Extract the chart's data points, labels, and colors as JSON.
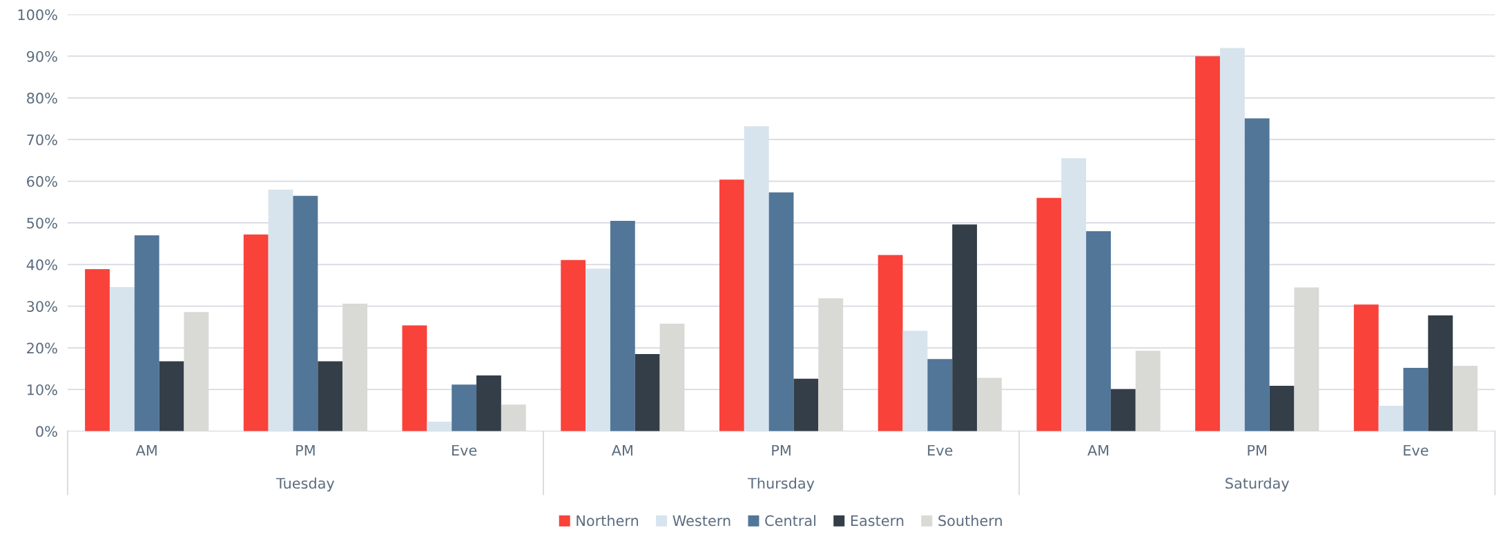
{
  "chart_data": {
    "type": "bar",
    "categories": [
      "AM",
      "PM",
      "Eve",
      "AM",
      "PM",
      "Eve",
      "AM",
      "PM",
      "Eve"
    ],
    "annotations": [
      "Tuesday",
      "Thursday",
      "Saturday"
    ],
    "series": [
      {
        "name": "Northern",
        "color": "#f9423a",
        "values": [
          38.9,
          47.2,
          25.4,
          41.1,
          60.4,
          42.3,
          56,
          90,
          30.4
        ]
      },
      {
        "name": "Western",
        "color": "#d7e4ee",
        "values": [
          34.6,
          58,
          2.3,
          39,
          73.2,
          24.1,
          65.5,
          92,
          6.1
        ]
      },
      {
        "name": "Central",
        "color": "#527698",
        "values": [
          47,
          56.5,
          11.2,
          50.5,
          57.3,
          17.3,
          48,
          75.1,
          15.2
        ]
      },
      {
        "name": "Eastern",
        "color": "#333e48",
        "values": [
          16.8,
          16.8,
          13.4,
          18.5,
          12.6,
          49.6,
          10.1,
          10.9,
          27.8
        ]
      },
      {
        "name": "Southern",
        "color": "#d9d9d6",
        "values": [
          28.6,
          30.6,
          6.4,
          25.8,
          31.9,
          12.8,
          19.3,
          34.5,
          15.7
        ]
      }
    ],
    "ylim": [
      0,
      100
    ],
    "yticks": [
      {
        "value": 0,
        "label": "0%"
      },
      {
        "value": 10,
        "label": "10%"
      },
      {
        "value": 20,
        "label": "20%"
      },
      {
        "value": 30,
        "label": "30%"
      },
      {
        "value": 40,
        "label": "40%"
      },
      {
        "value": 50,
        "label": "50%"
      },
      {
        "value": 60,
        "label": "60%"
      },
      {
        "value": 70,
        "label": "70%"
      },
      {
        "value": 80,
        "label": "80%"
      },
      {
        "value": 90,
        "label": "90%"
      },
      {
        "value": 100,
        "label": "100%"
      }
    ],
    "grid": "y",
    "legend": "bottom"
  }
}
